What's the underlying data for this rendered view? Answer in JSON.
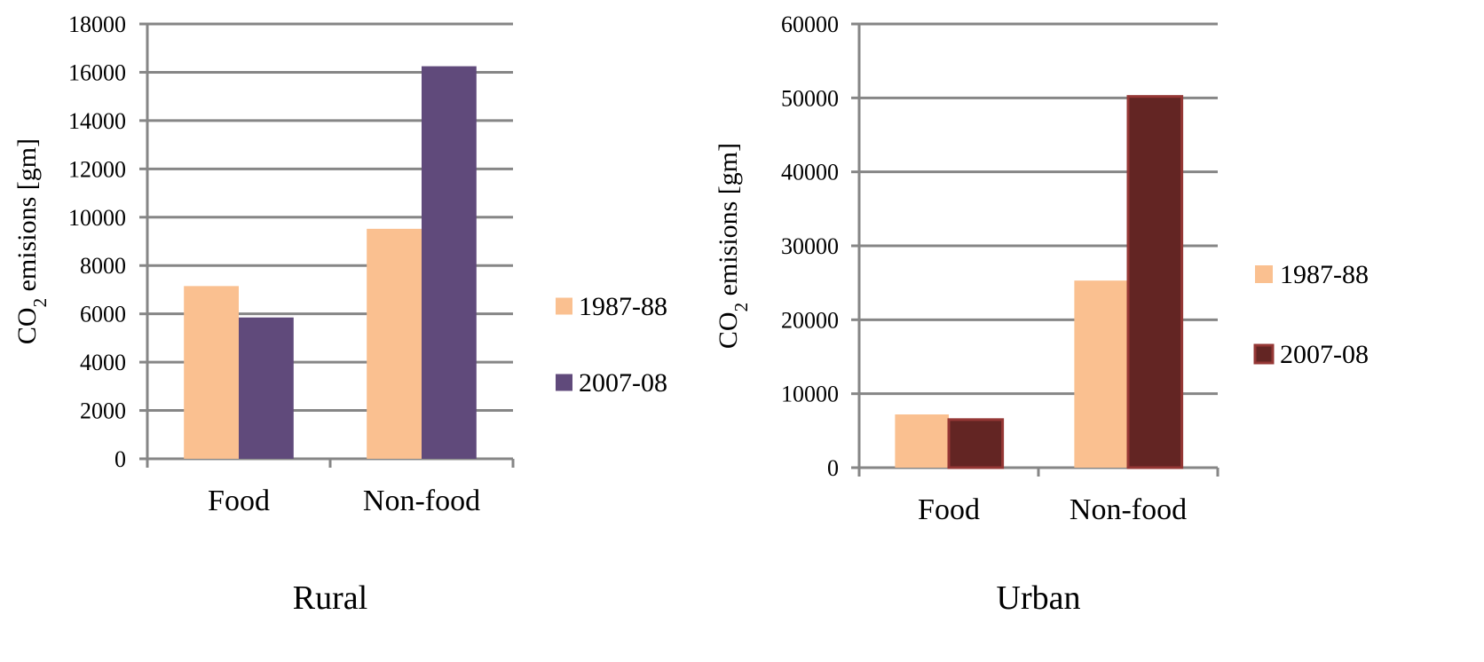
{
  "chart_data": [
    {
      "type": "bar",
      "title": "Rural",
      "categories": [
        "Food",
        "Non-food"
      ],
      "ylabel": {
        "main": "CO",
        "sub": "2",
        "rest": " emisions [gm]"
      },
      "ylim": [
        0,
        18000
      ],
      "yticks": [
        0,
        2000,
        4000,
        6000,
        8000,
        10000,
        12000,
        14000,
        16000,
        18000
      ],
      "grid": true,
      "legend_position": "right",
      "series": [
        {
          "name": "1987-88",
          "color": "#FAC090",
          "values": [
            7150,
            9520
          ]
        },
        {
          "name": "2007-08",
          "color": "#604A7B",
          "values": [
            5850,
            16250
          ]
        }
      ]
    },
    {
      "type": "bar",
      "title": "Urban",
      "categories": [
        "Food",
        "Non-food"
      ],
      "ylabel": {
        "main": "CO",
        "sub": "2",
        "rest": " emisions [gm]"
      },
      "ylim": [
        0,
        60000
      ],
      "yticks": [
        0,
        10000,
        20000,
        30000,
        40000,
        50000,
        60000
      ],
      "grid": true,
      "legend_position": "right",
      "series": [
        {
          "name": "1987-88",
          "color": "#FAC090",
          "values": [
            7200,
            25300
          ]
        },
        {
          "name": "2007-08",
          "color": "#632523",
          "stroke": "#953735",
          "values": [
            6500,
            50200
          ]
        }
      ]
    }
  ]
}
